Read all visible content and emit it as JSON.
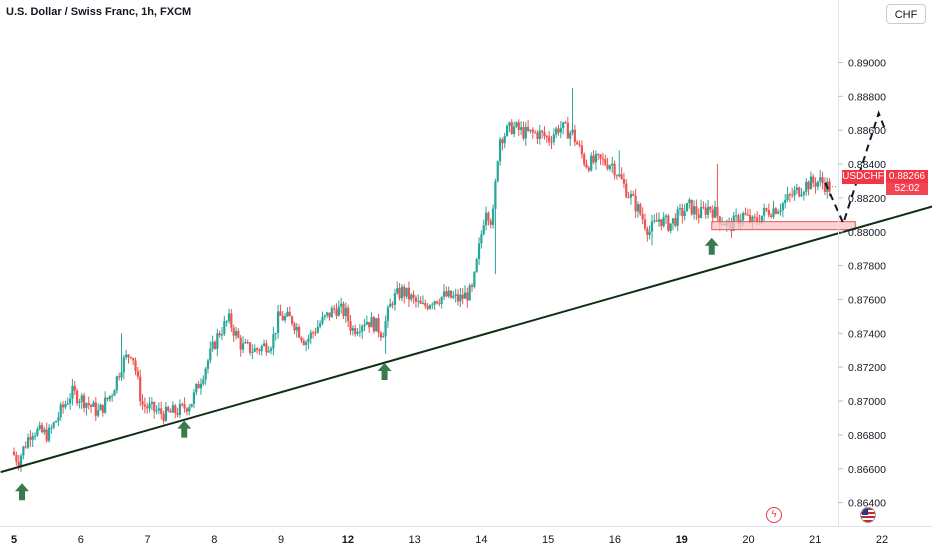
{
  "header": {
    "title": "U.S. Dollar / Swiss Franc, 1h, FXCM",
    "currency_button": "CHF"
  },
  "price_tag": {
    "symbol": "USDCHF",
    "price": "0.88266",
    "countdown": "52:02"
  },
  "colors": {
    "bull": "#26a69a",
    "bear": "#ef5350",
    "trendline": "#0f2f14",
    "arrow": "#3a7a4f",
    "zone": "#f7c6c8",
    "zone_border": "#ef5350",
    "price_tag": "#f23645"
  },
  "events": [
    "lightning-icon",
    "us-flag-icon"
  ],
  "chart_data": {
    "type": "candlestick",
    "title": "U.S. Dollar / Swiss Franc, 1h, FXCM",
    "xlabel": "",
    "ylabel": "",
    "ylim": [
      0.863,
      0.891
    ],
    "y_ticks": [
      "0.89000",
      "0.88800",
      "0.88600",
      "0.88400",
      "0.88200",
      "0.88000",
      "0.87800",
      "0.87600",
      "0.87400",
      "0.87200",
      "0.87000",
      "0.86800",
      "0.86600",
      "0.86400"
    ],
    "y_tick_values": [
      0.89,
      0.888,
      0.886,
      0.884,
      0.882,
      0.88,
      0.878,
      0.876,
      0.874,
      0.872,
      0.87,
      0.868,
      0.866,
      0.864
    ],
    "x_ticks": [
      {
        "label": "5",
        "day": 0,
        "bold": true
      },
      {
        "label": "6",
        "day": 1,
        "bold": false
      },
      {
        "label": "7",
        "day": 2,
        "bold": false
      },
      {
        "label": "8",
        "day": 3,
        "bold": false
      },
      {
        "label": "9",
        "day": 4,
        "bold": false
      },
      {
        "label": "12",
        "day": 5,
        "bold": true
      },
      {
        "label": "13",
        "day": 6,
        "bold": false
      },
      {
        "label": "14",
        "day": 7,
        "bold": false
      },
      {
        "label": "15",
        "day": 8,
        "bold": false
      },
      {
        "label": "16",
        "day": 9,
        "bold": false
      },
      {
        "label": "19",
        "day": 10,
        "bold": true
      },
      {
        "label": "20",
        "day": 11,
        "bold": false
      },
      {
        "label": "21",
        "day": 12,
        "bold": false
      },
      {
        "label": "22",
        "day": 13,
        "bold": false
      }
    ],
    "day_range": [
      0,
      13.9
    ],
    "anchors": [
      {
        "d": 0.0,
        "p": 0.867
      },
      {
        "d": 0.1,
        "p": 0.8665
      },
      {
        "d": 0.3,
        "p": 0.8683
      },
      {
        "d": 0.55,
        "p": 0.868
      },
      {
        "d": 0.75,
        "p": 0.8695
      },
      {
        "d": 0.9,
        "p": 0.8705
      },
      {
        "d": 1.1,
        "p": 0.87
      },
      {
        "d": 1.3,
        "p": 0.8693
      },
      {
        "d": 1.5,
        "p": 0.8705
      },
      {
        "d": 1.65,
        "p": 0.8722
      },
      {
        "d": 1.8,
        "p": 0.873
      },
      {
        "d": 1.95,
        "p": 0.8698
      },
      {
        "d": 2.1,
        "p": 0.8695
      },
      {
        "d": 2.3,
        "p": 0.8692
      },
      {
        "d": 2.55,
        "p": 0.8695
      },
      {
        "d": 2.7,
        "p": 0.87
      },
      {
        "d": 2.9,
        "p": 0.872
      },
      {
        "d": 3.1,
        "p": 0.874
      },
      {
        "d": 3.25,
        "p": 0.8748
      },
      {
        "d": 3.45,
        "p": 0.8732
      },
      {
        "d": 3.65,
        "p": 0.873
      },
      {
        "d": 3.9,
        "p": 0.8735
      },
      {
        "d": 4.0,
        "p": 0.875
      },
      {
        "d": 4.2,
        "p": 0.8748
      },
      {
        "d": 4.4,
        "p": 0.8735
      },
      {
        "d": 4.6,
        "p": 0.8745
      },
      {
        "d": 4.85,
        "p": 0.8755
      },
      {
        "d": 5.0,
        "p": 0.8752
      },
      {
        "d": 5.1,
        "p": 0.8742
      },
      {
        "d": 5.3,
        "p": 0.8748
      },
      {
        "d": 5.45,
        "p": 0.8745
      },
      {
        "d": 5.55,
        "p": 0.874
      },
      {
        "d": 5.7,
        "p": 0.876
      },
      {
        "d": 5.85,
        "p": 0.8765
      },
      {
        "d": 6.0,
        "p": 0.876
      },
      {
        "d": 6.15,
        "p": 0.8755
      },
      {
        "d": 6.3,
        "p": 0.876
      },
      {
        "d": 6.5,
        "p": 0.8762
      },
      {
        "d": 6.7,
        "p": 0.876
      },
      {
        "d": 6.9,
        "p": 0.8765
      },
      {
        "d": 7.0,
        "p": 0.879
      },
      {
        "d": 7.1,
        "p": 0.8815
      },
      {
        "d": 7.2,
        "p": 0.8805
      },
      {
        "d": 7.3,
        "p": 0.8855
      },
      {
        "d": 7.5,
        "p": 0.8862
      },
      {
        "d": 7.7,
        "p": 0.8858
      },
      {
        "d": 7.9,
        "p": 0.8858
      },
      {
        "d": 8.05,
        "p": 0.8855
      },
      {
        "d": 8.2,
        "p": 0.8862
      },
      {
        "d": 8.4,
        "p": 0.8858
      },
      {
        "d": 8.6,
        "p": 0.884
      },
      {
        "d": 8.8,
        "p": 0.8842
      },
      {
        "d": 9.0,
        "p": 0.884
      },
      {
        "d": 9.2,
        "p": 0.8825
      },
      {
        "d": 9.4,
        "p": 0.8812
      },
      {
        "d": 9.55,
        "p": 0.88
      },
      {
        "d": 9.7,
        "p": 0.8808
      },
      {
        "d": 9.85,
        "p": 0.8804
      },
      {
        "d": 10.0,
        "p": 0.881
      },
      {
        "d": 10.15,
        "p": 0.8815
      },
      {
        "d": 10.3,
        "p": 0.881
      },
      {
        "d": 10.45,
        "p": 0.8815
      },
      {
        "d": 10.6,
        "p": 0.8808
      },
      {
        "d": 10.75,
        "p": 0.8803
      },
      {
        "d": 10.95,
        "p": 0.881
      },
      {
        "d": 11.1,
        "p": 0.8805
      },
      {
        "d": 11.3,
        "p": 0.8812
      },
      {
        "d": 11.5,
        "p": 0.8815
      },
      {
        "d": 11.7,
        "p": 0.8822
      },
      {
        "d": 11.9,
        "p": 0.8828
      },
      {
        "d": 12.1,
        "p": 0.883
      },
      {
        "d": 12.25,
        "p": 0.8826
      }
    ],
    "spikes": [
      {
        "d": 1.62,
        "hi": 0.874
      },
      {
        "d": 5.55,
        "lo": 0.8728
      },
      {
        "d": 7.2,
        "lo": 0.8775
      },
      {
        "d": 8.35,
        "hi": 0.8885
      },
      {
        "d": 9.55,
        "lo": 0.8792
      },
      {
        "d": 10.55,
        "hi": 0.884
      },
      {
        "d": 9.05,
        "hi": 0.8848
      }
    ],
    "trendline": [
      {
        "d": -0.2,
        "p": 0.8658
      },
      {
        "d": 13.85,
        "p": 0.8816
      }
    ],
    "support_zone": {
      "d0": 10.45,
      "d1": 12.6,
      "p0": 0.88015,
      "p1": 0.88042
    },
    "forecast_path": [
      {
        "d": 12.15,
        "p": 0.8829
      },
      {
        "d": 12.42,
        "p": 0.8805
      },
      {
        "d": 12.95,
        "p": 0.887
      },
      {
        "d": 13.05,
        "p": 0.886
      }
    ],
    "arrows": [
      {
        "d": 0.12,
        "p": 0.8655
      },
      {
        "d": 2.55,
        "p": 0.8692
      },
      {
        "d": 5.55,
        "p": 0.8726
      },
      {
        "d": 10.45,
        "p": 0.88
      }
    ],
    "last_price": 0.88266
  }
}
